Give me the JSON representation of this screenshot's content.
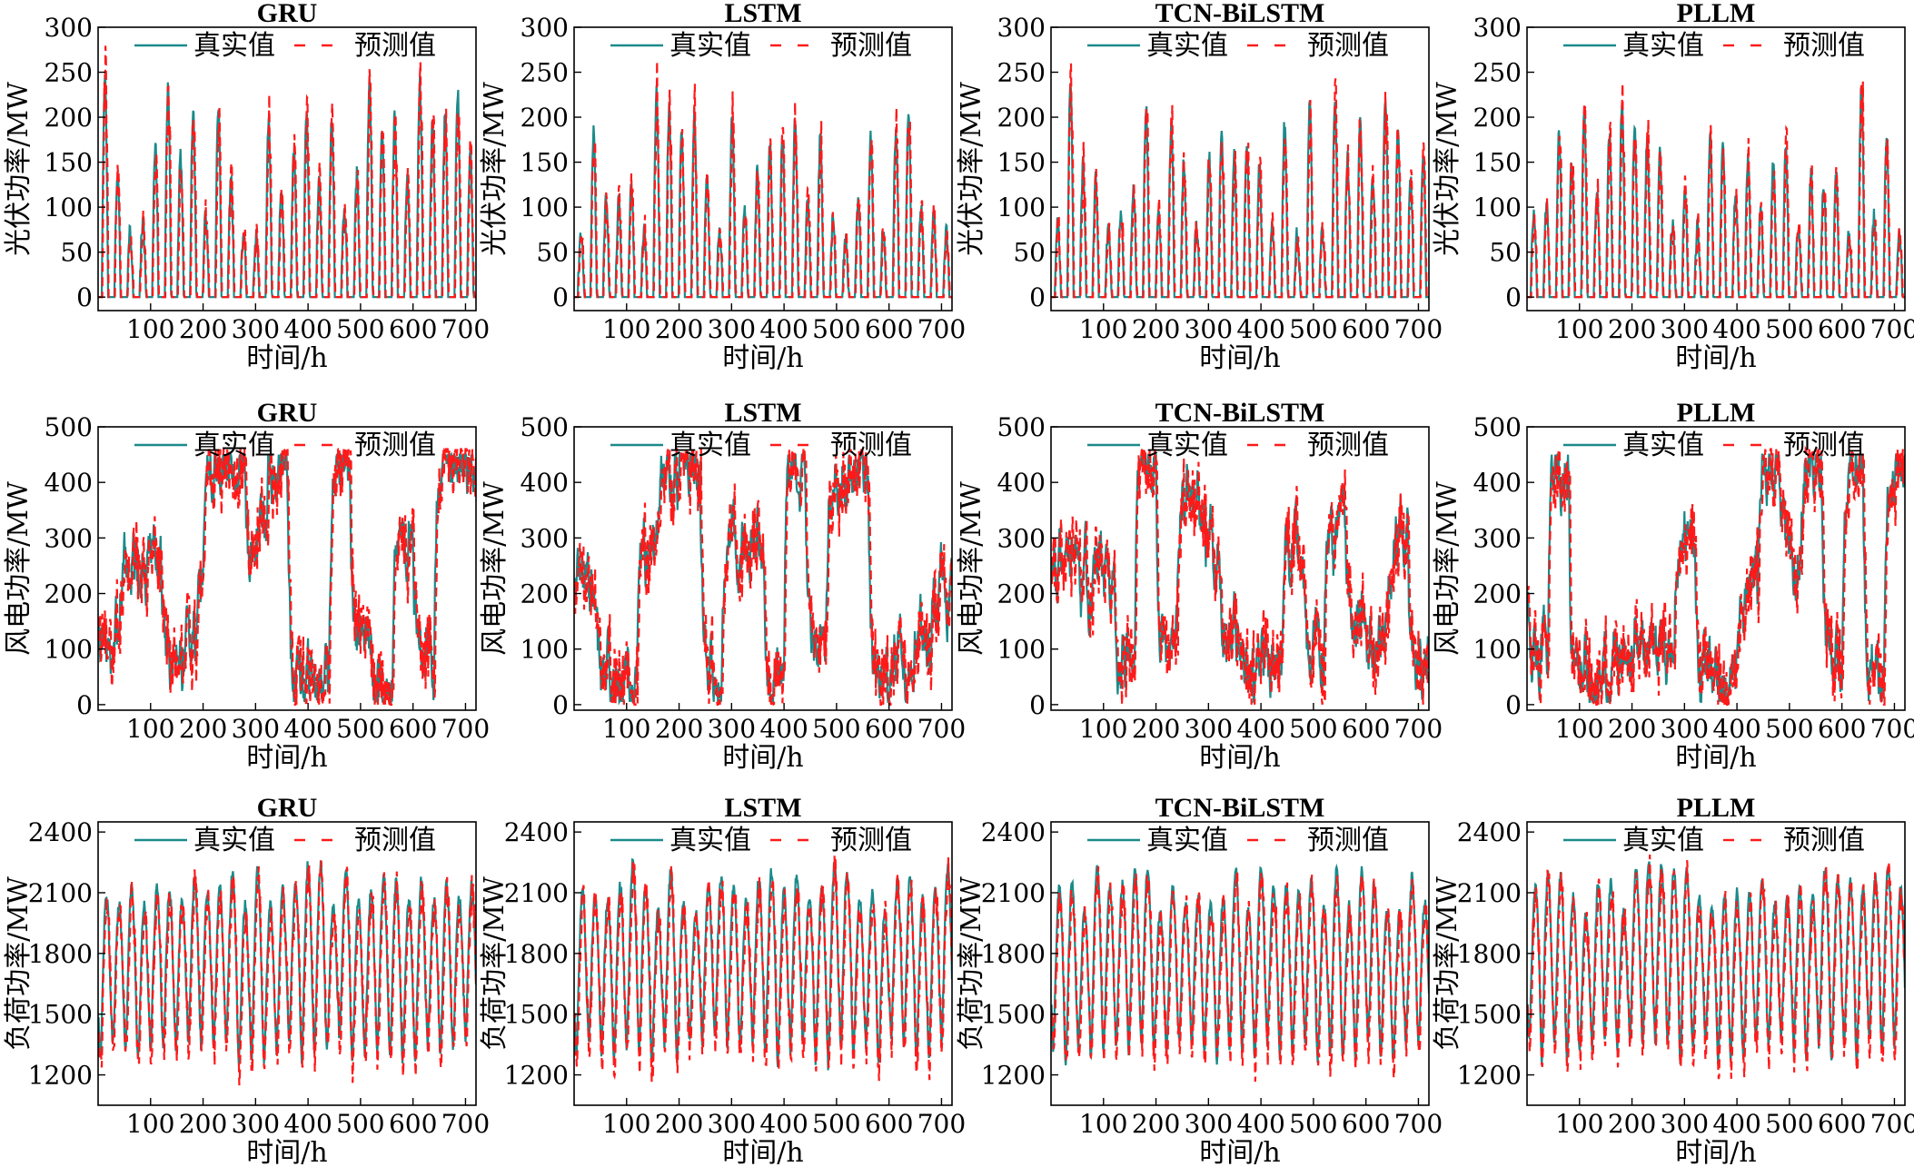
{
  "figure": {
    "legend": {
      "actual": "真实值",
      "predicted": "预测值"
    },
    "colors": {
      "actual": "#1b8a8a",
      "predicted": "#ff1a1a",
      "axis": "#000000"
    },
    "xlabel": "时间/h",
    "xticks": [
      100,
      200,
      300,
      400,
      500,
      600,
      700
    ],
    "xlim": [
      0,
      720
    ]
  },
  "chart_data": [
    {
      "type": "line",
      "row": 0,
      "col": 0,
      "title": "GRU",
      "xlabel": "时间/h",
      "ylabel": "光伏功率/MW",
      "ylim": [
        -15,
        300
      ],
      "yticks": [
        0,
        50,
        100,
        150,
        200,
        250,
        300
      ],
      "kind": "pv",
      "seed": 11,
      "mean": true,
      "series": [
        {
          "name": "真实值",
          "summary": "daily solar peaks 80–260 MW, zero at night, 30 days hourly"
        },
        {
          "name": "预测值",
          "summary": "tracks actual with small lag"
        }
      ]
    },
    {
      "type": "line",
      "row": 0,
      "col": 1,
      "title": "LSTM",
      "xlabel": "时间/h",
      "ylabel": "光伏功率/MW",
      "ylim": [
        -15,
        300
      ],
      "yticks": [
        0,
        50,
        100,
        150,
        200,
        250,
        300
      ],
      "kind": "pv",
      "seed": 12,
      "series": [
        {
          "name": "真实值"
        },
        {
          "name": "预测值"
        }
      ]
    },
    {
      "type": "line",
      "row": 0,
      "col": 2,
      "title": "TCN-BiLSTM",
      "xlabel": "时间/h",
      "ylabel": "光伏功率/MW",
      "ylim": [
        -15,
        300
      ],
      "yticks": [
        0,
        50,
        100,
        150,
        200,
        250,
        300
      ],
      "kind": "pv",
      "seed": 13,
      "series": [
        {
          "name": "真实值"
        },
        {
          "name": "预测值"
        }
      ]
    },
    {
      "type": "line",
      "row": 0,
      "col": 3,
      "title": "PLLM",
      "xlabel": "时间/h",
      "ylabel": "光伏功率/MW",
      "ylim": [
        -15,
        300
      ],
      "yticks": [
        0,
        50,
        100,
        150,
        200,
        250,
        300
      ],
      "kind": "pv",
      "seed": 14,
      "series": [
        {
          "name": "真实值"
        },
        {
          "name": "预测值"
        }
      ]
    },
    {
      "type": "line",
      "row": 1,
      "col": 0,
      "title": "GRU",
      "xlabel": "时间/h",
      "ylabel": "风电功率/MW",
      "ylim": [
        -10,
        500
      ],
      "yticks": [
        0,
        100,
        200,
        300,
        400,
        500
      ],
      "kind": "wind",
      "seed": 21,
      "series": [
        {
          "name": "真实值",
          "summary": "wind 0–450 MW, high plateaus near 420–450 MW"
        },
        {
          "name": "预测值"
        }
      ]
    },
    {
      "type": "line",
      "row": 1,
      "col": 1,
      "title": "LSTM",
      "xlabel": "时间/h",
      "ylabel": "风电功率/MW",
      "ylim": [
        -10,
        500
      ],
      "yticks": [
        0,
        100,
        200,
        300,
        400,
        500
      ],
      "kind": "wind",
      "seed": 22,
      "series": [
        {
          "name": "真实值"
        },
        {
          "name": "预测值"
        }
      ]
    },
    {
      "type": "line",
      "row": 1,
      "col": 2,
      "title": "TCN-BiLSTM",
      "xlabel": "时间/h",
      "ylabel": "风电功率/MW",
      "ylim": [
        -10,
        500
      ],
      "yticks": [
        0,
        100,
        200,
        300,
        400,
        500
      ],
      "kind": "wind",
      "seed": 23,
      "series": [
        {
          "name": "真实值"
        },
        {
          "name": "预测值"
        }
      ]
    },
    {
      "type": "line",
      "row": 1,
      "col": 3,
      "title": "PLLM",
      "xlabel": "时间/h",
      "ylabel": "风电功率/MW",
      "ylim": [
        -10,
        500
      ],
      "yticks": [
        0,
        100,
        200,
        300,
        400,
        500
      ],
      "kind": "wind",
      "seed": 24,
      "series": [
        {
          "name": "真实值"
        },
        {
          "name": "预测值"
        }
      ]
    },
    {
      "type": "line",
      "row": 2,
      "col": 0,
      "title": "GRU",
      "xlabel": "时间/h",
      "ylabel": "负荷功率/MW",
      "ylim": [
        1050,
        2450
      ],
      "yticks": [
        1200,
        1500,
        1800,
        2100,
        2400
      ],
      "kind": "load",
      "seed": 31,
      "series": [
        {
          "name": "真实值",
          "summary": "daily load cycle ~1250–2200 MW"
        },
        {
          "name": "预测值"
        }
      ]
    },
    {
      "type": "line",
      "row": 2,
      "col": 1,
      "title": "LSTM",
      "xlabel": "时间/h",
      "ylabel": "负荷功率/MW",
      "ylim": [
        1050,
        2450
      ],
      "yticks": [
        1200,
        1500,
        1800,
        2100,
        2400
      ],
      "kind": "load",
      "seed": 32,
      "series": [
        {
          "name": "真实值"
        },
        {
          "name": "预测值"
        }
      ]
    },
    {
      "type": "line",
      "row": 2,
      "col": 2,
      "title": "TCN-BiLSTM",
      "xlabel": "时间/h",
      "ylabel": "负荷功率/MW",
      "ylim": [
        1050,
        2450
      ],
      "yticks": [
        1200,
        1500,
        1800,
        2100,
        2400
      ],
      "kind": "load",
      "seed": 33,
      "series": [
        {
          "name": "真实值"
        },
        {
          "name": "预测值"
        }
      ]
    },
    {
      "type": "line",
      "row": 2,
      "col": 3,
      "title": "PLLM",
      "xlabel": "时间/h",
      "ylabel": "负荷功率/MW",
      "ylim": [
        1050,
        2450
      ],
      "yticks": [
        1200,
        1500,
        1800,
        2100,
        2400
      ],
      "kind": "load",
      "seed": 34,
      "series": [
        {
          "name": "真实值"
        },
        {
          "name": "预测值"
        }
      ]
    }
  ]
}
